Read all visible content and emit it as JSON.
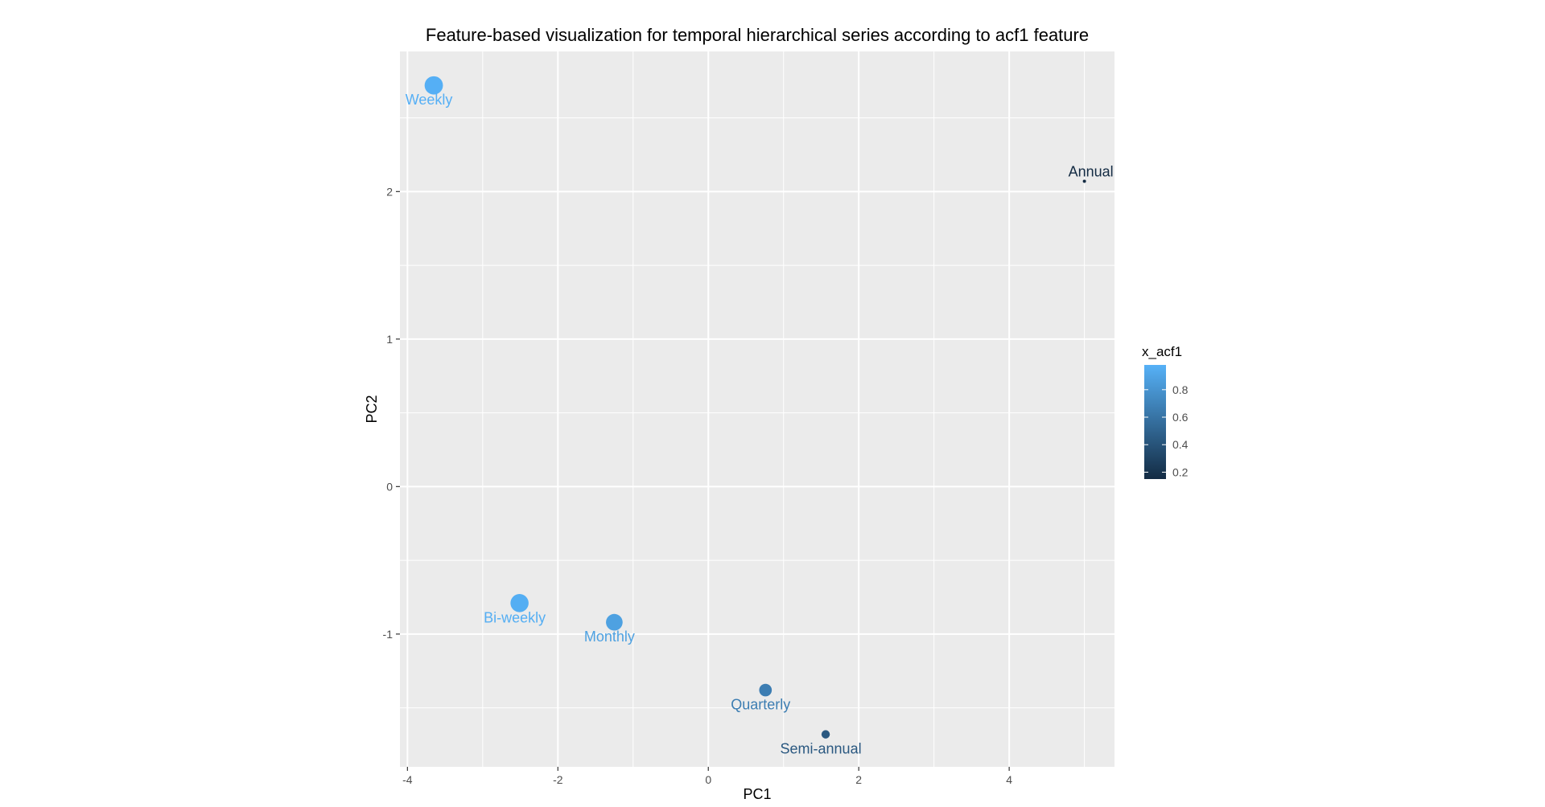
{
  "chart_data": {
    "type": "scatter",
    "title": "Feature-based visualization for temporal hierarchical series according to acf1 feature",
    "xlabel": "PC1",
    "ylabel": "PC2",
    "xlim": [
      -4.1,
      5.4
    ],
    "ylim": [
      -1.9,
      2.95
    ],
    "x_ticks": [
      {
        "value": -4,
        "label": "-4"
      },
      {
        "value": -2,
        "label": "-2"
      },
      {
        "value": 0,
        "label": "0"
      },
      {
        "value": 2,
        "label": "2"
      },
      {
        "value": 4,
        "label": "4"
      }
    ],
    "y_ticks": [
      {
        "value": -1,
        "label": "-1"
      },
      {
        "value": 0,
        "label": "0"
      },
      {
        "value": 1,
        "label": "1"
      },
      {
        "value": 2,
        "label": "2"
      }
    ],
    "points": [
      {
        "label": "Weekly",
        "x": -3.65,
        "y": 2.72,
        "acf1": 0.97
      },
      {
        "label": "Bi-weekly",
        "x": -2.51,
        "y": -0.79,
        "acf1": 0.96
      },
      {
        "label": "Monthly",
        "x": -1.25,
        "y": -0.92,
        "acf1": 0.88
      },
      {
        "label": "Quarterly",
        "x": 0.76,
        "y": -1.38,
        "acf1": 0.66
      },
      {
        "label": "Semi-annual",
        "x": 1.56,
        "y": -1.68,
        "acf1": 0.43
      },
      {
        "label": "Annual",
        "x": 5.0,
        "y": 2.07,
        "acf1": 0.15
      }
    ],
    "grid": true,
    "legend": {
      "title": "x_acf1",
      "placement": "right",
      "range": [
        0.15,
        0.98
      ],
      "ticks": [
        {
          "value": 0.8,
          "label": "0.8"
        },
        {
          "value": 0.6,
          "label": "0.6"
        },
        {
          "value": 0.4,
          "label": "0.4"
        },
        {
          "value": 0.2,
          "label": "0.2"
        }
      ],
      "color_low": "#132b43",
      "color_high": "#56b1f7"
    },
    "panel_background": "#ebebeb",
    "grid_color": "#ffffff"
  }
}
